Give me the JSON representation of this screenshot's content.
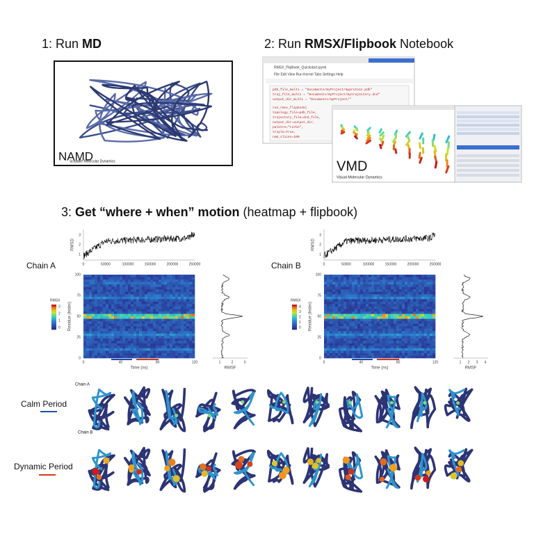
{
  "section1": {
    "prefix": "1: Run ",
    "bold": "MD",
    "logo": "NAMD",
    "logo_sub": "Scalable Molecular Dynamics"
  },
  "section2": {
    "prefix": "2:  Run ",
    "bold": "RMSX/Flipbook",
    "suffix": " Notebook",
    "notebook_title": "RMSX_FlipBook_Quickstart.ipynb",
    "menu": "File   Edit   View   Run   Kernel   Tabs   Settings   Help",
    "code": [
      "pdb_file_multi = \"Documents/myProject/myprotein.pdb\"",
      "traj_file_multi = \"Documents/myProject/mytrajectory.dcd\"",
      "output_dir_multi = \"Documents/myProject/\"",
      "run_rmsx_flipbook(",
      "    topology_file=pdb_file,",
      "    trajectory_file=dcd_file,",
      "    output_dir=output_dir,",
      "    palette=\"turbo\",",
      "    triple=True,",
      "    num_slices=100"
    ],
    "vmd_logo": "VMD",
    "vmd_sub": "Visual Molecular Dynamics"
  },
  "section3": {
    "prefix": "3: ",
    "bold": "Get “where + when” motion",
    "suffix": " (heatmap + flipbook)"
  },
  "panels": [
    {
      "label": "Chain A",
      "rmsd_label": "RMSD",
      "rmsd_yticks": [
        "1",
        "2",
        "3"
      ],
      "rmsd_xticks": [
        "0",
        "50000",
        "100000",
        "150000",
        "200000",
        "250000"
      ],
      "y_label": "Residue (Index)",
      "yticks": [
        "100",
        "75",
        "50",
        "25",
        "0"
      ],
      "x_label": "Time (ns)",
      "xticks": [
        "0",
        "40",
        "80",
        "120"
      ],
      "legend_title": "RMSX",
      "legend_ticks": [
        "3",
        "2",
        "1",
        "0"
      ],
      "rmsf_label": "RMSF",
      "rmsf_ticks": [
        "1",
        "2",
        "3"
      ]
    },
    {
      "label": "Chain B",
      "rmsd_label": "RMSD",
      "rmsd_yticks": [
        "1",
        "2",
        "3"
      ],
      "rmsd_xticks": [
        "0",
        "50000",
        "100000",
        "150000",
        "200000",
        "250000"
      ],
      "y_label": "Residue (Index)",
      "yticks": [
        "100",
        "75",
        "50",
        "25",
        "0"
      ],
      "x_label": "Time (ns)",
      "xticks": [
        "0",
        "40",
        "80",
        "120"
      ],
      "legend_title": "RMSX",
      "legend_ticks": [
        "4",
        "3",
        "2",
        "1",
        "0"
      ],
      "rmsf_label": "RMSF",
      "rmsf_ticks": [
        "1",
        "2",
        "3",
        "4"
      ]
    }
  ],
  "flipbook": {
    "calm": "Calm Period",
    "dynamic": "Dynamic Period",
    "chain_a": "Chain A",
    "chain_b": "Chain B"
  }
}
